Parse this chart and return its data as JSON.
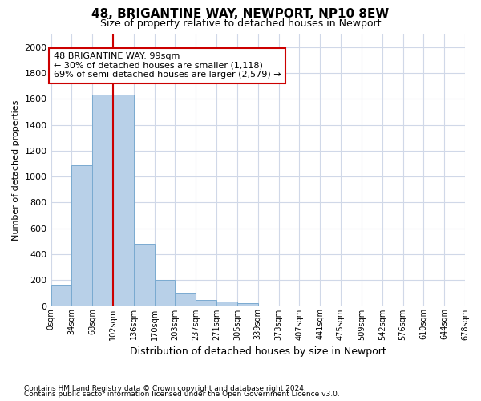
{
  "title_line1": "48, BRIGANTINE WAY, NEWPORT, NP10 8EW",
  "title_line2": "Size of property relative to detached houses in Newport",
  "xlabel": "Distribution of detached houses by size in Newport",
  "ylabel": "Number of detached properties",
  "footnote1": "Contains HM Land Registry data © Crown copyright and database right 2024.",
  "footnote2": "Contains public sector information licensed under the Open Government Licence v3.0.",
  "annotation_line1": "48 BRIGANTINE WAY: 99sqm",
  "annotation_line2": "← 30% of detached houses are smaller (1,118)",
  "annotation_line3": "69% of semi-detached houses are larger (2,579) →",
  "bar_values": [
    165,
    1085,
    1630,
    1630,
    480,
    200,
    100,
    45,
    35,
    22,
    0,
    0,
    0,
    0,
    0,
    0,
    0,
    0,
    0,
    0
  ],
  "bin_labels": [
    "0sqm",
    "34sqm",
    "68sqm",
    "102sqm",
    "136sqm",
    "170sqm",
    "203sqm",
    "237sqm",
    "271sqm",
    "305sqm",
    "339sqm",
    "373sqm",
    "407sqm",
    "441sqm",
    "475sqm",
    "509sqm",
    "542sqm",
    "576sqm",
    "610sqm",
    "644sqm",
    "678sqm"
  ],
  "bar_color": "#b8d0e8",
  "bar_edge_color": "#7aaad0",
  "grid_color": "#d0d8e8",
  "vline_x": 3,
  "vline_color": "#cc0000",
  "ylim": [
    0,
    2100
  ],
  "yticks": [
    0,
    200,
    400,
    600,
    800,
    1000,
    1200,
    1400,
    1600,
    1800,
    2000
  ],
  "annotation_box_color": "#cc0000",
  "background_color": "#ffffff"
}
